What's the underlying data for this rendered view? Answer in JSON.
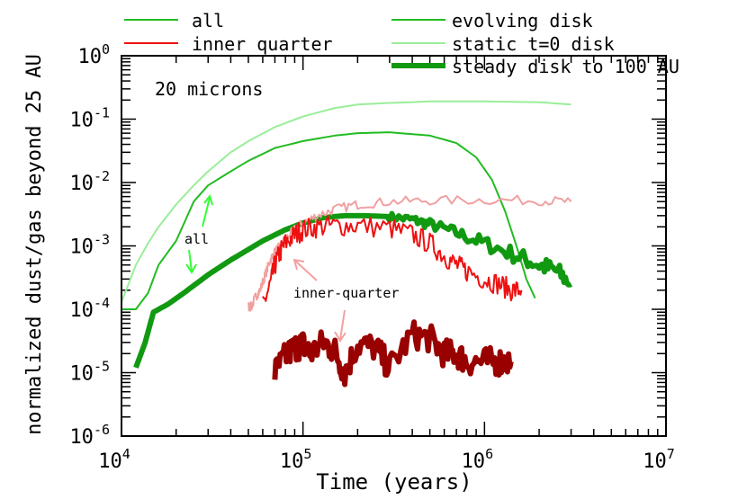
{
  "chart_data": {
    "type": "line",
    "title": "",
    "annotation_title": "20 microns",
    "xlabel": "Time (years)",
    "ylabel": "normalized dust/gas beyond 25 AU",
    "xscale": "log",
    "yscale": "log",
    "xlim": [
      10000,
      10000000
    ],
    "ylim": [
      1e-06,
      1
    ],
    "x_ticks": [
      {
        "base": "10",
        "exp": "4",
        "value": 10000
      },
      {
        "base": "10",
        "exp": "5",
        "value": 100000
      },
      {
        "base": "10",
        "exp": "6",
        "value": 1000000
      },
      {
        "base": "10",
        "exp": "7",
        "value": 10000000
      }
    ],
    "y_ticks": [
      {
        "base": "10",
        "exp": "-6",
        "value": 1e-06
      },
      {
        "base": "10",
        "exp": "-5",
        "value": 1e-05
      },
      {
        "base": "10",
        "exp": "-4",
        "value": 0.0001
      },
      {
        "base": "10",
        "exp": "-3",
        "value": 0.001
      },
      {
        "base": "10",
        "exp": "-2",
        "value": 0.01
      },
      {
        "base": "10",
        "exp": "-1",
        "value": 0.1
      },
      {
        "base": "10",
        "exp": "0",
        "value": 1
      }
    ],
    "legend_region": [
      "all",
      "inner quarter"
    ],
    "legend_model": [
      "evolving disk",
      "static t=0 disk",
      "steady disk to 100 AU"
    ],
    "annotations": [
      {
        "text": "all",
        "x": 22000,
        "y": 0.0018
      },
      {
        "text": "inner-quarter",
        "x": 160000,
        "y": 9e-05
      }
    ],
    "colors": {
      "green": "#22bb22",
      "light_green": "#99ee99",
      "dark_green": "#119911",
      "red": "#ee1111",
      "pink": "#f0a0a0",
      "dark_red": "#990000",
      "arrow_green": "#33ff33",
      "arrow_pink": "#f4a0a0"
    },
    "series": [
      {
        "name": "all, static t=0 disk",
        "color": "light_green",
        "width": 2,
        "x": [
          10000,
          12000,
          14000,
          16000,
          20000,
          25000,
          30000,
          40000,
          50000,
          70000,
          100000,
          150000,
          200000,
          300000,
          500000,
          700000,
          1000000,
          2000000,
          3000000
        ],
        "y": [
          0.00013,
          0.0005,
          0.0011,
          0.002,
          0.0045,
          0.009,
          0.015,
          0.03,
          0.045,
          0.075,
          0.11,
          0.15,
          0.17,
          0.18,
          0.19,
          0.19,
          0.19,
          0.185,
          0.17
        ]
      },
      {
        "name": "all, evolving disk",
        "color": "green",
        "width": 2,
        "x": [
          10000,
          12000,
          14000,
          16000,
          20000,
          25000,
          30000,
          40000,
          50000,
          70000,
          100000,
          150000,
          200000,
          300000,
          500000,
          700000,
          900000,
          1100000,
          1300000,
          1500000,
          1700000,
          1900000
        ],
        "y": [
          0.0001,
          0.0001,
          0.00018,
          0.0005,
          0.0012,
          0.005,
          0.009,
          0.015,
          0.022,
          0.035,
          0.045,
          0.055,
          0.06,
          0.062,
          0.055,
          0.042,
          0.025,
          0.011,
          0.0035,
          0.001,
          0.0003,
          0.00015
        ]
      },
      {
        "name": "all, steady disk to 100 AU",
        "color": "dark_green",
        "width": 6,
        "noise": 0.3,
        "noise_from": 300000,
        "x": [
          12000,
          13500,
          15000,
          18000,
          22000,
          30000,
          40000,
          60000,
          80000,
          100000,
          130000,
          170000,
          220000,
          300000,
          400000,
          500000,
          700000,
          1000000,
          1500000,
          2000000,
          2500000,
          3000000
        ],
        "y": [
          1.2e-05,
          3e-05,
          9e-05,
          0.00012,
          0.00018,
          0.00035,
          0.0006,
          0.0012,
          0.0018,
          0.0023,
          0.0028,
          0.003,
          0.003,
          0.0029,
          0.0026,
          0.0022,
          0.0016,
          0.0011,
          0.0007,
          0.0005,
          0.0004,
          0.00025
        ]
      },
      {
        "name": "inner quarter, static t=0 disk",
        "color": "pink",
        "width": 2,
        "noise": 0.15,
        "x": [
          50000,
          52000,
          55000,
          58000,
          62000,
          66000,
          70000,
          75000,
          80000,
          90000,
          100000,
          120000,
          150000,
          200000,
          300000,
          500000,
          1000000,
          2000000,
          3000000
        ],
        "y": [
          0.00011,
          0.00011,
          0.00016,
          0.0002,
          0.00035,
          0.0006,
          0.0008,
          0.001,
          0.0013,
          0.0018,
          0.0023,
          0.003,
          0.0038,
          0.0045,
          0.005,
          0.0052,
          0.0053,
          0.0052,
          0.005
        ]
      },
      {
        "name": "inner quarter, evolving disk",
        "color": "red",
        "width": 2,
        "noise": 0.35,
        "x": [
          60000,
          66000,
          70000,
          75000,
          80000,
          90000,
          100000,
          120000,
          150000,
          200000,
          300000,
          400000,
          500000,
          600000,
          700000,
          800000,
          1000000,
          1200000,
          1400000,
          1600000
        ],
        "y": [
          0.00011,
          0.00025,
          0.0005,
          0.0008,
          0.0011,
          0.0015,
          0.0018,
          0.002,
          0.0021,
          0.0021,
          0.0019,
          0.0015,
          0.0011,
          0.0007,
          0.0005,
          0.0004,
          0.0003,
          0.00025,
          0.0002,
          0.0002
        ]
      },
      {
        "name": "inner quarter, steady disk to 100 AU",
        "color": "dark_red",
        "width": 6,
        "noise": 0.45,
        "x": [
          70000,
          80000,
          90000,
          100000,
          110000,
          130000,
          150000,
          170000,
          200000,
          250000,
          300000,
          400000,
          500000,
          600000,
          700000,
          800000,
          1000000,
          1200000,
          1400000
        ],
        "y": [
          1e-05,
          1.8e-05,
          2.5e-05,
          2.8e-05,
          2e-05,
          3e-05,
          2.2e-05,
          1e-05,
          2.8e-05,
          2.5e-05,
          1.2e-05,
          4e-05,
          3.5e-05,
          2e-05,
          2e-05,
          1.5e-05,
          1.5e-05,
          1.5e-05,
          1.5e-05
        ]
      }
    ]
  }
}
